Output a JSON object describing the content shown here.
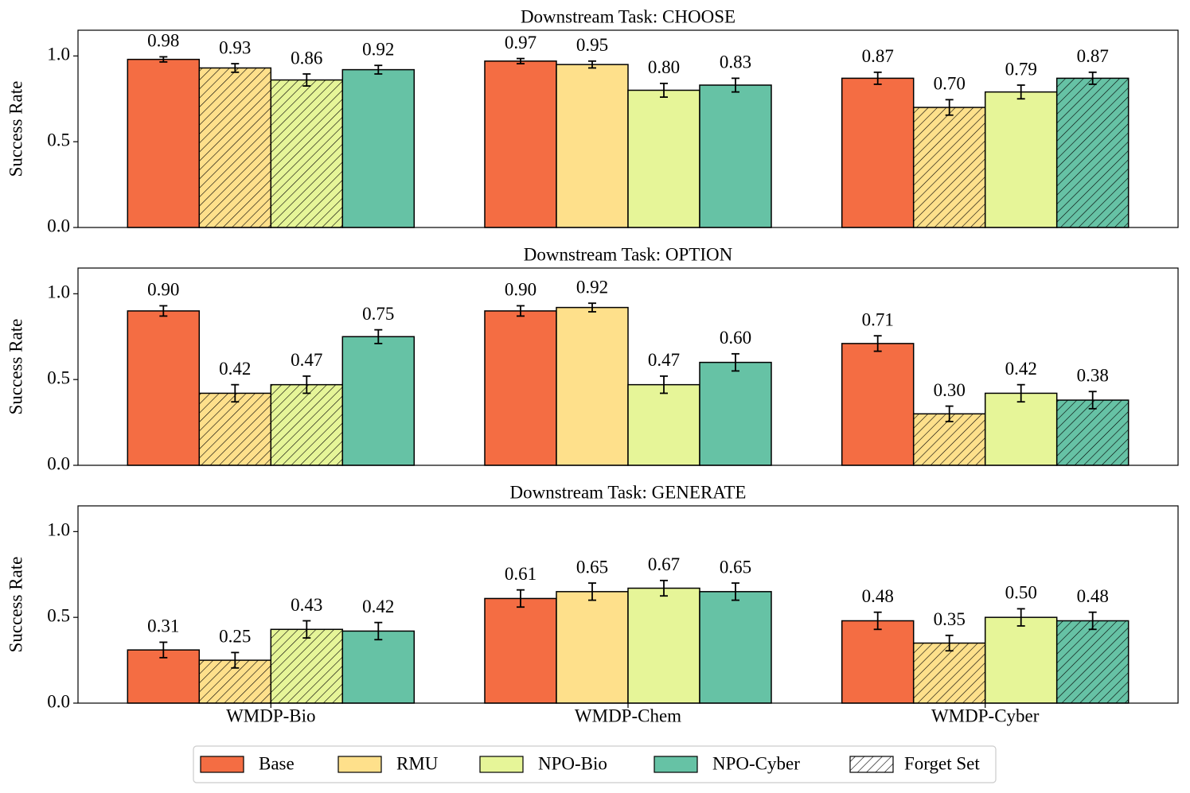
{
  "chart_data": [
    {
      "type": "bar",
      "title": "Downstream Task: CHOOSE",
      "ylabel": "Success Rate",
      "ylim": [
        0,
        1.15
      ],
      "yticks": [
        {
          "value": 0,
          "label": "0.0"
        },
        {
          "value": 0.5,
          "label": "0.5"
        },
        {
          "value": 1,
          "label": "1.0"
        }
      ],
      "series": [
        {
          "name": "Base",
          "color": "#f46d43",
          "values": [
            0.98,
            0.97,
            0.87
          ],
          "value_labels": [
            "0.98",
            "0.97",
            "0.87"
          ],
          "errors": [
            0.015,
            0.015,
            0.035
          ],
          "hatched": [
            false,
            false,
            false
          ]
        },
        {
          "name": "RMU",
          "color": "#fee08b",
          "values": [
            0.93,
            0.95,
            0.7
          ],
          "value_labels": [
            "0.93",
            "0.95",
            "0.70"
          ],
          "errors": [
            0.025,
            0.02,
            0.045
          ],
          "hatched": [
            true,
            false,
            true
          ]
        },
        {
          "name": "NPO-Bio",
          "color": "#e6f598",
          "values": [
            0.86,
            0.8,
            0.79
          ],
          "value_labels": [
            "0.86",
            "0.80",
            "0.79"
          ],
          "errors": [
            0.035,
            0.04,
            0.04
          ],
          "hatched": [
            true,
            false,
            false
          ]
        },
        {
          "name": "NPO-Cyber",
          "color": "#66c2a5",
          "values": [
            0.92,
            0.83,
            0.87
          ],
          "value_labels": [
            "0.92",
            "0.83",
            "0.87"
          ],
          "errors": [
            0.025,
            0.04,
            0.035
          ],
          "hatched": [
            false,
            false,
            true
          ]
        }
      ]
    },
    {
      "type": "bar",
      "title": "Downstream Task: OPTION",
      "ylabel": "Success Rate",
      "ylim": [
        0,
        1.15
      ],
      "yticks": [
        {
          "value": 0,
          "label": "0.0"
        },
        {
          "value": 0.5,
          "label": "0.5"
        },
        {
          "value": 1,
          "label": "1.0"
        }
      ],
      "series": [
        {
          "name": "Base",
          "color": "#f46d43",
          "values": [
            0.9,
            0.9,
            0.71
          ],
          "value_labels": [
            "0.90",
            "0.90",
            "0.71"
          ],
          "errors": [
            0.03,
            0.03,
            0.045
          ],
          "hatched": [
            false,
            false,
            false
          ]
        },
        {
          "name": "RMU",
          "color": "#fee08b",
          "values": [
            0.42,
            0.92,
            0.3
          ],
          "value_labels": [
            "0.42",
            "0.92",
            "0.30"
          ],
          "errors": [
            0.05,
            0.025,
            0.045
          ],
          "hatched": [
            true,
            false,
            true
          ]
        },
        {
          "name": "NPO-Bio",
          "color": "#e6f598",
          "values": [
            0.47,
            0.47,
            0.42
          ],
          "value_labels": [
            "0.47",
            "0.47",
            "0.42"
          ],
          "errors": [
            0.05,
            0.05,
            0.05
          ],
          "hatched": [
            true,
            false,
            false
          ]
        },
        {
          "name": "NPO-Cyber",
          "color": "#66c2a5",
          "values": [
            0.75,
            0.6,
            0.38
          ],
          "value_labels": [
            "0.75",
            "0.60",
            "0.38"
          ],
          "errors": [
            0.04,
            0.05,
            0.05
          ],
          "hatched": [
            false,
            false,
            true
          ]
        }
      ]
    },
    {
      "type": "bar",
      "title": "Downstream Task: GENERATE",
      "ylabel": "Success Rate",
      "categories": [
        "WMDP-Bio",
        "WMDP-Chem",
        "WMDP-Cyber"
      ],
      "ylim": [
        0,
        1.15
      ],
      "yticks": [
        {
          "value": 0,
          "label": "0.0"
        },
        {
          "value": 0.5,
          "label": "0.5"
        },
        {
          "value": 1,
          "label": "1.0"
        }
      ],
      "series": [
        {
          "name": "Base",
          "color": "#f46d43",
          "values": [
            0.31,
            0.61,
            0.48
          ],
          "value_labels": [
            "0.31",
            "0.61",
            "0.48"
          ],
          "errors": [
            0.045,
            0.05,
            0.05
          ],
          "hatched": [
            false,
            false,
            false
          ]
        },
        {
          "name": "RMU",
          "color": "#fee08b",
          "values": [
            0.25,
            0.65,
            0.35
          ],
          "value_labels": [
            "0.25",
            "0.65",
            "0.35"
          ],
          "errors": [
            0.045,
            0.05,
            0.045
          ],
          "hatched": [
            true,
            false,
            true
          ]
        },
        {
          "name": "NPO-Bio",
          "color": "#e6f598",
          "values": [
            0.43,
            0.67,
            0.5
          ],
          "value_labels": [
            "0.43",
            "0.67",
            "0.50"
          ],
          "errors": [
            0.05,
            0.045,
            0.05
          ],
          "hatched": [
            true,
            false,
            false
          ]
        },
        {
          "name": "NPO-Cyber",
          "color": "#66c2a5",
          "values": [
            0.42,
            0.65,
            0.48
          ],
          "value_labels": [
            "0.42",
            "0.65",
            "0.48"
          ],
          "errors": [
            0.05,
            0.05,
            0.05
          ],
          "hatched": [
            false,
            false,
            true
          ]
        }
      ],
      "legend": "below",
      "hatch_label": "Forget Set"
    }
  ]
}
